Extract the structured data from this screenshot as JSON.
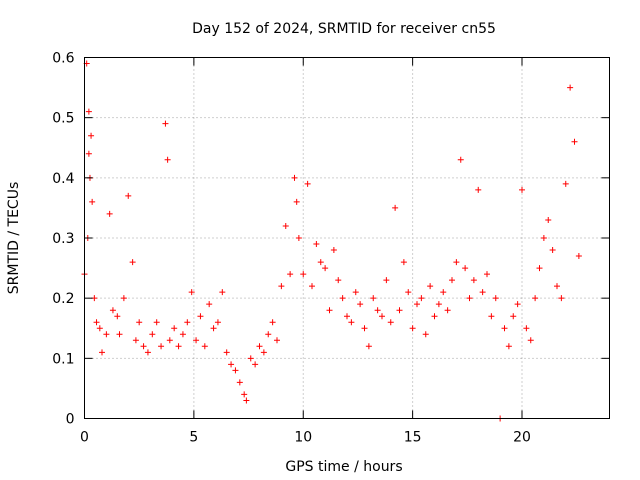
{
  "chart_data": {
    "type": "scatter",
    "title": "Day 152 of 2024, SRMTID for receiver cn55",
    "xlabel": "GPS time / hours",
    "ylabel": "SRMTID / TECUs",
    "xlim": [
      0,
      24
    ],
    "ylim": [
      0,
      0.6
    ],
    "x_ticks": [
      0,
      5,
      10,
      15,
      20
    ],
    "y_ticks": [
      0,
      0.1,
      0.2,
      0.3,
      0.4,
      0.5,
      0.6
    ],
    "x_tick_labels": [
      "0",
      "5",
      "10",
      "15",
      "20"
    ],
    "y_tick_labels": [
      "0",
      "0.1",
      "0.2",
      "0.3",
      "0.4",
      "0.5",
      "0.6"
    ],
    "grid": true,
    "marker": "plus",
    "series": [
      {
        "name": "SRMTID",
        "color": "#ff0000",
        "x": [
          0.0,
          0.15,
          0.1,
          0.2,
          0.3,
          0.2,
          0.25,
          0.35,
          0.45,
          0.55,
          0.7,
          0.8,
          1.0,
          1.15,
          1.3,
          1.5,
          1.6,
          1.8,
          2.0,
          2.2,
          2.35,
          2.5,
          2.7,
          2.9,
          3.1,
          3.3,
          3.5,
          3.7,
          3.8,
          3.9,
          4.1,
          4.3,
          4.5,
          4.7,
          4.9,
          5.1,
          5.3,
          5.5,
          5.7,
          5.9,
          6.1,
          6.3,
          6.5,
          6.7,
          6.9,
          7.1,
          7.3,
          7.4,
          7.6,
          7.8,
          8.0,
          8.2,
          8.4,
          8.6,
          8.8,
          9.0,
          9.2,
          9.4,
          9.6,
          9.7,
          9.8,
          10.0,
          10.2,
          10.4,
          10.6,
          10.8,
          11.0,
          11.2,
          11.4,
          11.6,
          11.8,
          12.0,
          12.2,
          12.4,
          12.6,
          12.8,
          13.0,
          13.2,
          13.4,
          13.6,
          13.8,
          14.0,
          14.2,
          14.4,
          14.6,
          14.8,
          15.0,
          15.2,
          15.4,
          15.6,
          15.8,
          16.0,
          16.2,
          16.4,
          16.6,
          16.8,
          17.0,
          17.2,
          17.4,
          17.6,
          17.8,
          18.0,
          18.2,
          18.4,
          18.6,
          18.8,
          19.0,
          19.2,
          19.4,
          19.6,
          19.8,
          20.0,
          20.2,
          20.4,
          20.6,
          20.8,
          21.0,
          21.2,
          21.4,
          21.6,
          21.8,
          22.0,
          22.2,
          22.4,
          22.6
        ],
        "y": [
          0.24,
          0.3,
          0.59,
          0.51,
          0.47,
          0.44,
          0.4,
          0.36,
          0.2,
          0.16,
          0.15,
          0.11,
          0.14,
          0.34,
          0.18,
          0.17,
          0.14,
          0.2,
          0.37,
          0.26,
          0.13,
          0.16,
          0.12,
          0.11,
          0.14,
          0.16,
          0.12,
          0.49,
          0.43,
          0.13,
          0.15,
          0.12,
          0.14,
          0.16,
          0.21,
          0.13,
          0.17,
          0.12,
          0.19,
          0.15,
          0.16,
          0.21,
          0.11,
          0.09,
          0.08,
          0.06,
          0.04,
          0.03,
          0.1,
          0.09,
          0.12,
          0.11,
          0.14,
          0.16,
          0.13,
          0.22,
          0.32,
          0.24,
          0.4,
          0.36,
          0.3,
          0.24,
          0.39,
          0.22,
          0.29,
          0.26,
          0.25,
          0.18,
          0.28,
          0.23,
          0.2,
          0.17,
          0.16,
          0.21,
          0.19,
          0.15,
          0.12,
          0.2,
          0.18,
          0.17,
          0.23,
          0.16,
          0.35,
          0.18,
          0.26,
          0.21,
          0.15,
          0.19,
          0.2,
          0.14,
          0.22,
          0.17,
          0.19,
          0.21,
          0.18,
          0.23,
          0.26,
          0.43,
          0.25,
          0.2,
          0.23,
          0.38,
          0.21,
          0.24,
          0.17,
          0.2,
          0.0,
          0.15,
          0.12,
          0.17,
          0.19,
          0.38,
          0.15,
          0.13,
          0.2,
          0.25,
          0.3,
          0.33,
          0.28,
          0.22,
          0.2,
          0.39,
          0.55,
          0.46,
          0.27
        ]
      }
    ]
  }
}
